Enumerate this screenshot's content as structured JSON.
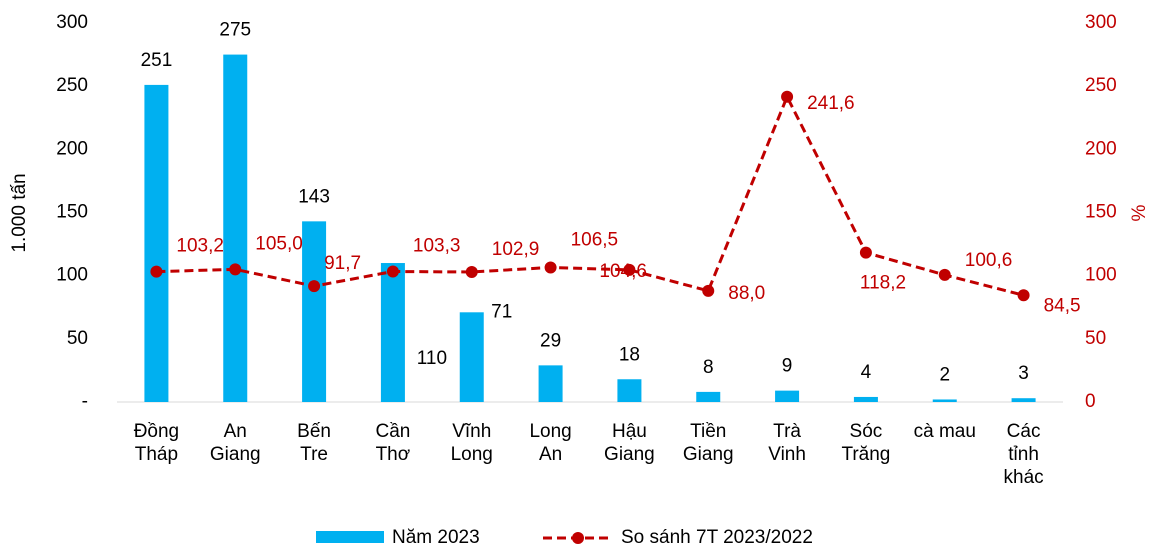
{
  "chart_data": {
    "type": "bar_line",
    "categories": [
      "Đồng\nTháp",
      "An\nGiang",
      "Bến\nTre",
      "Cần\nThơ",
      "Vĩnh\nLong",
      "Long\nAn",
      "Hậu\nGiang",
      "Tiền\nGiang",
      "Trà\nVinh",
      "Sóc\nTrăng",
      "cà mau",
      "Các\ntỉnh\nkhác"
    ],
    "y_label": "1.000 tấn",
    "y2_label": "%",
    "ylim": [
      0,
      300
    ],
    "yticks": [
      {
        "value": 0,
        "label": "-"
      },
      50,
      100,
      150,
      200,
      250,
      300
    ],
    "y2lim": [
      0,
      300
    ],
    "y2ticks": [
      0,
      50,
      100,
      150,
      200,
      250,
      300
    ],
    "series": [
      {
        "name": "Năm 2023",
        "type": "bar",
        "color": "#00b0f0",
        "values": [
          251,
          275,
          143,
          110,
          71,
          29,
          18,
          8,
          9,
          4,
          2,
          3
        ]
      },
      {
        "name": "So sánh 7T 2023/2022",
        "type": "line",
        "axis": "y2",
        "color": "#c00000",
        "dashed": true,
        "values": [
          103.2,
          105.0,
          91.7,
          103.3,
          102.9,
          106.5,
          104.6,
          88.0,
          241.6,
          118.2,
          100.6,
          84.5
        ],
        "value_labels": [
          "103,2",
          "105,0",
          "91,7",
          "103,3",
          "102,9",
          "106,5",
          "104,6",
          "88,0",
          "241,6",
          "118,2",
          "100,6",
          "84,5"
        ]
      }
    ],
    "legend": "bottom"
  }
}
